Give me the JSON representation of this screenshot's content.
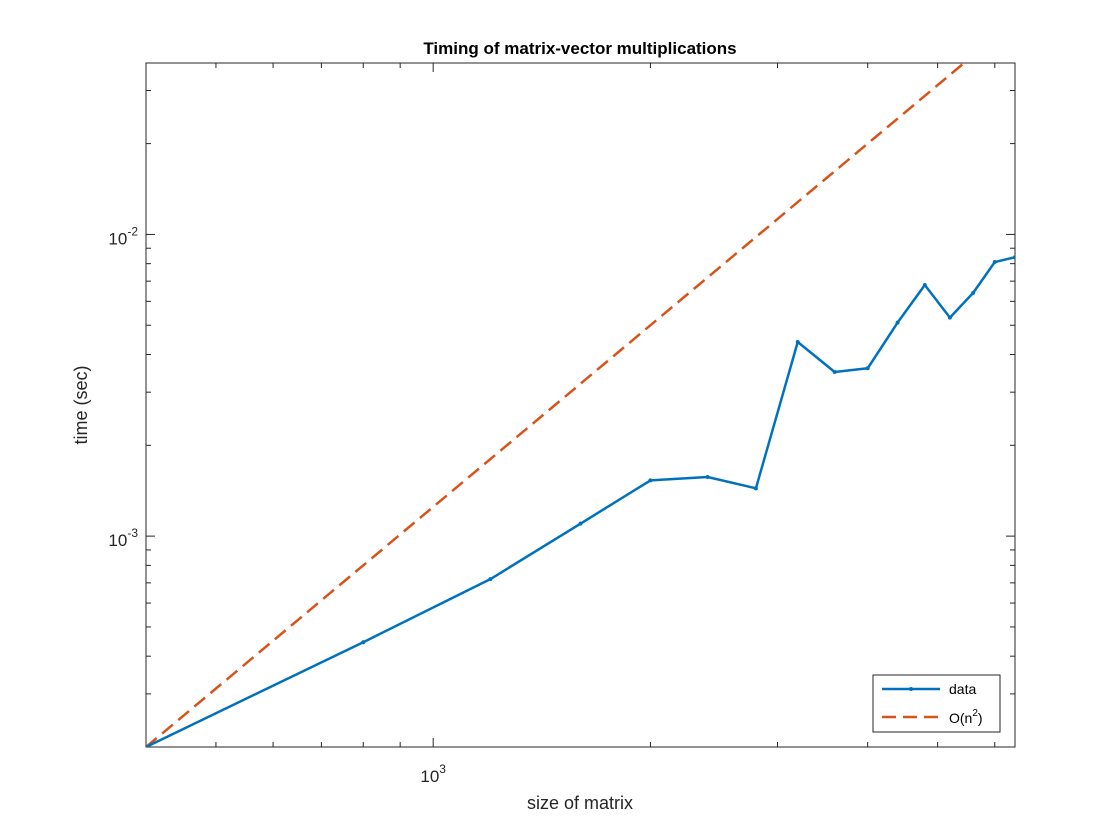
{
  "chart_data": {
    "type": "line",
    "scale": "loglog",
    "title": "Timing of matrix-vector multiplications",
    "xlabel": "size of matrix",
    "ylabel": "time (sec)",
    "xlim": [
      400,
      6400
    ],
    "ylim": [
      0.0002,
      0.037
    ],
    "x_tick_labels": [
      {
        "value": 1000,
        "base": "10",
        "exp": "3"
      }
    ],
    "y_tick_labels": [
      {
        "value": 0.01,
        "base": "10",
        "exp": "-2"
      },
      {
        "value": 0.001,
        "base": "10",
        "exp": "-3"
      }
    ],
    "grid": false,
    "legend_location": "bottom-right",
    "series": [
      {
        "name": "data",
        "style": "solid-with-point-markers",
        "color": "#0072BD",
        "x": [
          400,
          800,
          1200,
          1600,
          2000,
          2400,
          2800,
          3200,
          3600,
          4000,
          4400,
          4800,
          5200,
          5600,
          6000,
          6400
        ],
        "y": [
          0.0002,
          0.000445,
          0.00072,
          0.0011,
          0.00153,
          0.00157,
          0.00144,
          0.0044,
          0.0035,
          0.0036,
          0.0051,
          0.0068,
          0.0053,
          0.0064,
          0.0081,
          0.0084
        ]
      },
      {
        "name": "O(n^2)",
        "legend_base": "O(n",
        "legend_exp": "2",
        "legend_tail": ")",
        "style": "dashed",
        "color": "#D95319",
        "x": [
          400,
          6400
        ],
        "y": [
          0.0002,
          0.0512
        ]
      }
    ]
  }
}
